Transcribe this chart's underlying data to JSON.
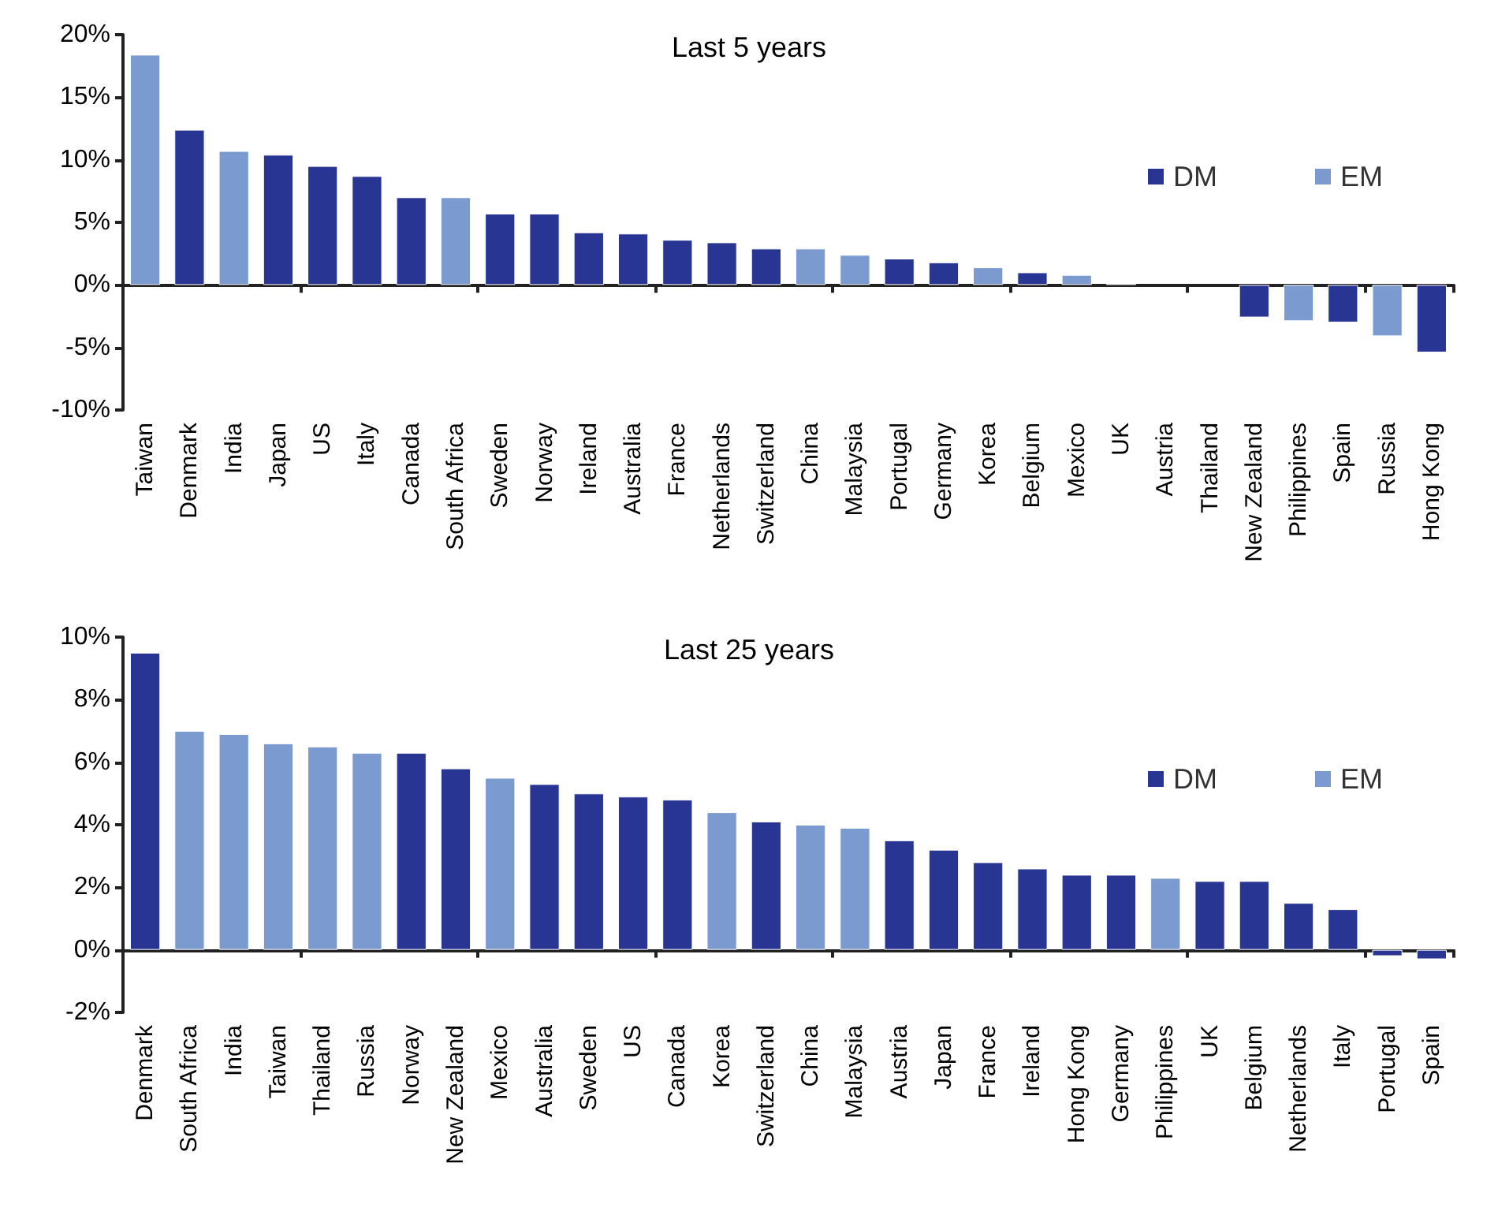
{
  "chart_data": [
    {
      "type": "bar",
      "title": "Last 5 years",
      "stacked": true,
      "legend": "top right",
      "categories": [
        "Taiwan",
        "Denmark",
        "India",
        "Japan",
        "US",
        "Italy",
        "Canada",
        "South Africa",
        "Sweden",
        "Norway",
        "Ireland",
        "Australia",
        "France",
        "Netherlands",
        "Switzerland",
        "China",
        "Malaysia",
        "Portugal",
        "Germany",
        "Korea",
        "Belgium",
        "Mexico",
        "UK",
        "Austria",
        "Thailand",
        "New Zealand",
        "Philippines",
        "Spain",
        "Russia",
        "Hong Kong"
      ],
      "series": [
        {
          "name": "DM",
          "color": "#283593",
          "values": [
            null,
            12.4,
            null,
            10.4,
            9.5,
            8.7,
            7.0,
            null,
            5.7,
            5.7,
            4.2,
            4.1,
            3.6,
            3.4,
            2.9,
            null,
            null,
            2.1,
            1.8,
            null,
            1.0,
            null,
            0.1,
            null,
            null,
            -2.6,
            null,
            -3.0,
            null,
            -5.4
          ]
        },
        {
          "name": "EM",
          "color": "#7b9acf",
          "values": [
            18.4,
            null,
            10.7,
            null,
            null,
            null,
            null,
            7.0,
            null,
            null,
            null,
            null,
            null,
            null,
            null,
            2.9,
            2.4,
            null,
            null,
            1.4,
            null,
            0.8,
            null,
            null,
            null,
            null,
            -2.9,
            null,
            -4.1,
            null
          ]
        }
      ],
      "ylim": [
        -10,
        20
      ],
      "yticks": [
        {
          "value": -10,
          "label": "-10%"
        },
        {
          "value": -5,
          "label": "-5%"
        },
        {
          "value": 0,
          "label": "0%"
        },
        {
          "value": 5,
          "label": "5%"
        },
        {
          "value": 10,
          "label": "10%"
        },
        {
          "value": 15,
          "label": "15%"
        },
        {
          "value": 20,
          "label": "20%"
        }
      ]
    },
    {
      "type": "bar",
      "title": "Last 25 years",
      "stacked": true,
      "legend": "top right",
      "categories": [
        "Denmark",
        "South Africa",
        "India",
        "Taiwan",
        "Thailand",
        "Russia",
        "Norway",
        "New Zealand",
        "Mexico",
        "Australia",
        "Sweden",
        "US",
        "Canada",
        "Korea",
        "Switzerland",
        "China",
        "Malaysia",
        "Austria",
        "Japan",
        "France",
        "Ireland",
        "Hong Kong",
        "Germany",
        "Philippines",
        "UK",
        "Belgium",
        "Netherlands",
        "Italy",
        "Portugal",
        "Spain"
      ],
      "series": [
        {
          "name": "DM",
          "color": "#283593",
          "values": [
            9.5,
            null,
            null,
            null,
            null,
            null,
            6.3,
            5.8,
            null,
            5.3,
            5.0,
            4.9,
            4.8,
            null,
            4.1,
            null,
            null,
            3.5,
            3.2,
            2.8,
            2.6,
            2.4,
            2.4,
            null,
            2.2,
            2.2,
            1.5,
            1.3,
            -0.2,
            -0.3
          ]
        },
        {
          "name": "EM",
          "color": "#7b9acf",
          "values": [
            null,
            7.0,
            6.9,
            6.6,
            6.5,
            6.3,
            null,
            null,
            5.5,
            null,
            null,
            null,
            null,
            4.4,
            null,
            4.0,
            3.9,
            null,
            null,
            null,
            null,
            null,
            null,
            2.3,
            null,
            null,
            null,
            null,
            null,
            null
          ]
        }
      ],
      "ylim": [
        -2,
        10
      ],
      "yticks": [
        {
          "value": -2,
          "label": "-2%"
        },
        {
          "value": 0,
          "label": "0%"
        },
        {
          "value": 2,
          "label": "2%"
        },
        {
          "value": 4,
          "label": "4%"
        },
        {
          "value": 6,
          "label": "6%"
        },
        {
          "value": 8,
          "label": "8%"
        },
        {
          "value": 10,
          "label": "10%"
        }
      ]
    }
  ]
}
